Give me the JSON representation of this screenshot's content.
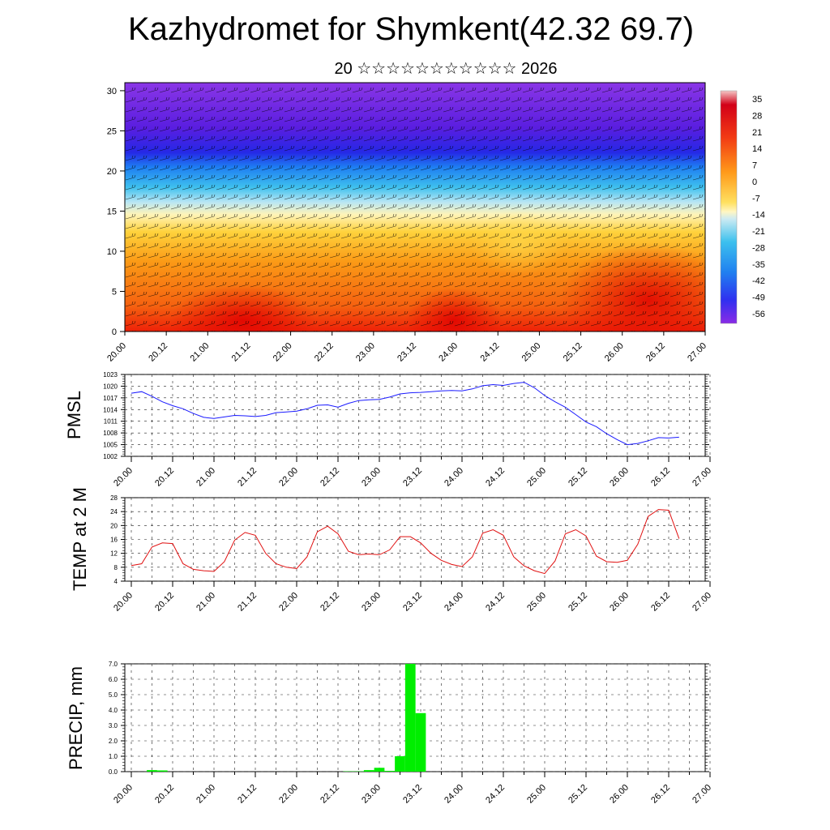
{
  "title": "Kazhydromet for Shymkent(42.32 69.7)",
  "subtitle": "20 ☆☆☆☆☆☆☆☆☆☆☆ 2026",
  "colors": {
    "pmsl_line": "#1a1aff",
    "temp_line": "#e01010",
    "precip_bar": "#00ee00"
  },
  "x_tick_labels": [
    "20.00",
    "20.12",
    "21.00",
    "21.12",
    "22.00",
    "22.12",
    "23.00",
    "23.12",
    "24.00",
    "24.12",
    "25.00",
    "25.12",
    "26.00",
    "26.12",
    "27.00"
  ],
  "chart_data": [
    {
      "type": "heatmap",
      "name": "temperature-wind cross-section",
      "ylim": [
        0,
        31
      ],
      "y_ticks": [
        "0",
        "5",
        "10",
        "15",
        "20",
        "25",
        "30"
      ],
      "colorbar_labels": [
        "35",
        "28",
        "21",
        "14",
        "7",
        "0",
        "-7",
        "-14",
        "-21",
        "-28",
        "-35",
        "-42",
        "-49",
        "-56"
      ],
      "description_layers": "warm near surface, cold aloft, wind barbs overlaid"
    },
    {
      "type": "line",
      "ylabel": "PMSL",
      "ylim": [
        1002,
        1023
      ],
      "y_ticks": [
        "1002",
        "1005",
        "1008",
        "1011",
        "1014",
        "1017",
        "1020",
        "1023"
      ],
      "x": [
        0,
        3,
        6,
        9,
        12,
        15,
        18,
        21,
        24,
        27,
        30,
        33,
        36,
        39,
        42,
        45,
        48,
        51,
        54,
        57,
        60,
        63,
        66,
        69,
        72,
        75,
        78,
        81,
        84,
        87,
        90,
        93,
        96,
        99,
        102,
        105,
        108,
        111,
        114,
        117,
        120,
        123,
        126,
        129,
        132,
        135,
        138,
        141,
        144,
        147,
        150,
        153,
        156,
        159
      ],
      "values": [
        1018.2,
        1018.6,
        1017.4,
        1016.0,
        1015.0,
        1014.2,
        1013.0,
        1012.0,
        1011.7,
        1012.1,
        1012.5,
        1012.4,
        1012.2,
        1012.5,
        1013.2,
        1013.4,
        1013.6,
        1014.2,
        1015.1,
        1015.2,
        1014.6,
        1015.6,
        1016.3,
        1016.5,
        1016.6,
        1017.2,
        1018.0,
        1018.3,
        1018.4,
        1018.6,
        1018.8,
        1018.9,
        1018.8,
        1019.3,
        1020.1,
        1020.4,
        1020.2,
        1020.7,
        1021.0,
        1019.6,
        1017.6,
        1016.0,
        1014.6,
        1012.7,
        1010.8,
        1009.6,
        1007.8,
        1006.3,
        1005.0,
        1005.3,
        1006.0,
        1006.8,
        1006.7,
        1006.9
      ]
    },
    {
      "type": "line",
      "ylabel": "TEMP at 2 M",
      "ylim": [
        4,
        28
      ],
      "y_ticks": [
        "4",
        "8",
        "12",
        "16",
        "20",
        "24",
        "28"
      ],
      "x": [
        0,
        3,
        6,
        9,
        12,
        15,
        18,
        21,
        24,
        27,
        30,
        33,
        36,
        39,
        42,
        45,
        48,
        51,
        54,
        57,
        60,
        63,
        66,
        69,
        72,
        75,
        78,
        81,
        84,
        87,
        90,
        93,
        96,
        99,
        102,
        105,
        108,
        111,
        114,
        117,
        120,
        123,
        126,
        129,
        132,
        135,
        138,
        141,
        144,
        147,
        150,
        153,
        156,
        159
      ],
      "values": [
        8.5,
        9.0,
        13.8,
        15.0,
        14.8,
        9.0,
        7.4,
        7.0,
        6.8,
        9.6,
        15.8,
        18.0,
        17.2,
        12.0,
        9.0,
        8.0,
        7.6,
        11.0,
        18.2,
        19.8,
        17.6,
        12.6,
        11.6,
        11.8,
        11.6,
        13.0,
        16.8,
        16.8,
        15.0,
        12.0,
        10.0,
        8.8,
        8.2,
        11.0,
        17.8,
        18.8,
        17.2,
        11.0,
        8.4,
        7.0,
        6.2,
        9.8,
        17.6,
        18.8,
        17.0,
        11.2,
        9.6,
        9.4,
        10.0,
        14.6,
        22.6,
        24.6,
        24.4,
        16.2
      ]
    },
    {
      "type": "bar",
      "ylabel": "PRECIP, mm",
      "ylim": [
        0,
        7
      ],
      "y_ticks": [
        "0.0",
        "1.0",
        "2.0",
        "3.0",
        "4.0",
        "5.0",
        "6.0",
        "7.0"
      ],
      "x": [
        0,
        3,
        6,
        9,
        12,
        15,
        18,
        21,
        24,
        27,
        30,
        33,
        36,
        39,
        42,
        45,
        48,
        51,
        54,
        57,
        60,
        63,
        66,
        69,
        72,
        75,
        78,
        81,
        84,
        87,
        90,
        93,
        96,
        99,
        102,
        105,
        108,
        111,
        114,
        117,
        120,
        123,
        126,
        129,
        132,
        135,
        138,
        141,
        144,
        147,
        150,
        153,
        156,
        159
      ],
      "values": [
        0,
        0,
        0.1,
        0.08,
        0,
        0,
        0,
        0,
        0,
        0,
        0,
        0,
        0,
        0,
        0,
        0,
        0,
        0,
        0,
        0,
        0,
        0.02,
        0.02,
        0.1,
        0.25,
        0.05,
        1.0,
        7.0,
        3.8,
        0,
        0,
        0,
        0,
        0,
        0,
        0,
        0,
        0,
        0,
        0,
        0,
        0,
        0,
        0,
        0,
        0,
        0,
        0,
        0,
        0,
        0,
        0,
        0,
        0
      ]
    }
  ]
}
